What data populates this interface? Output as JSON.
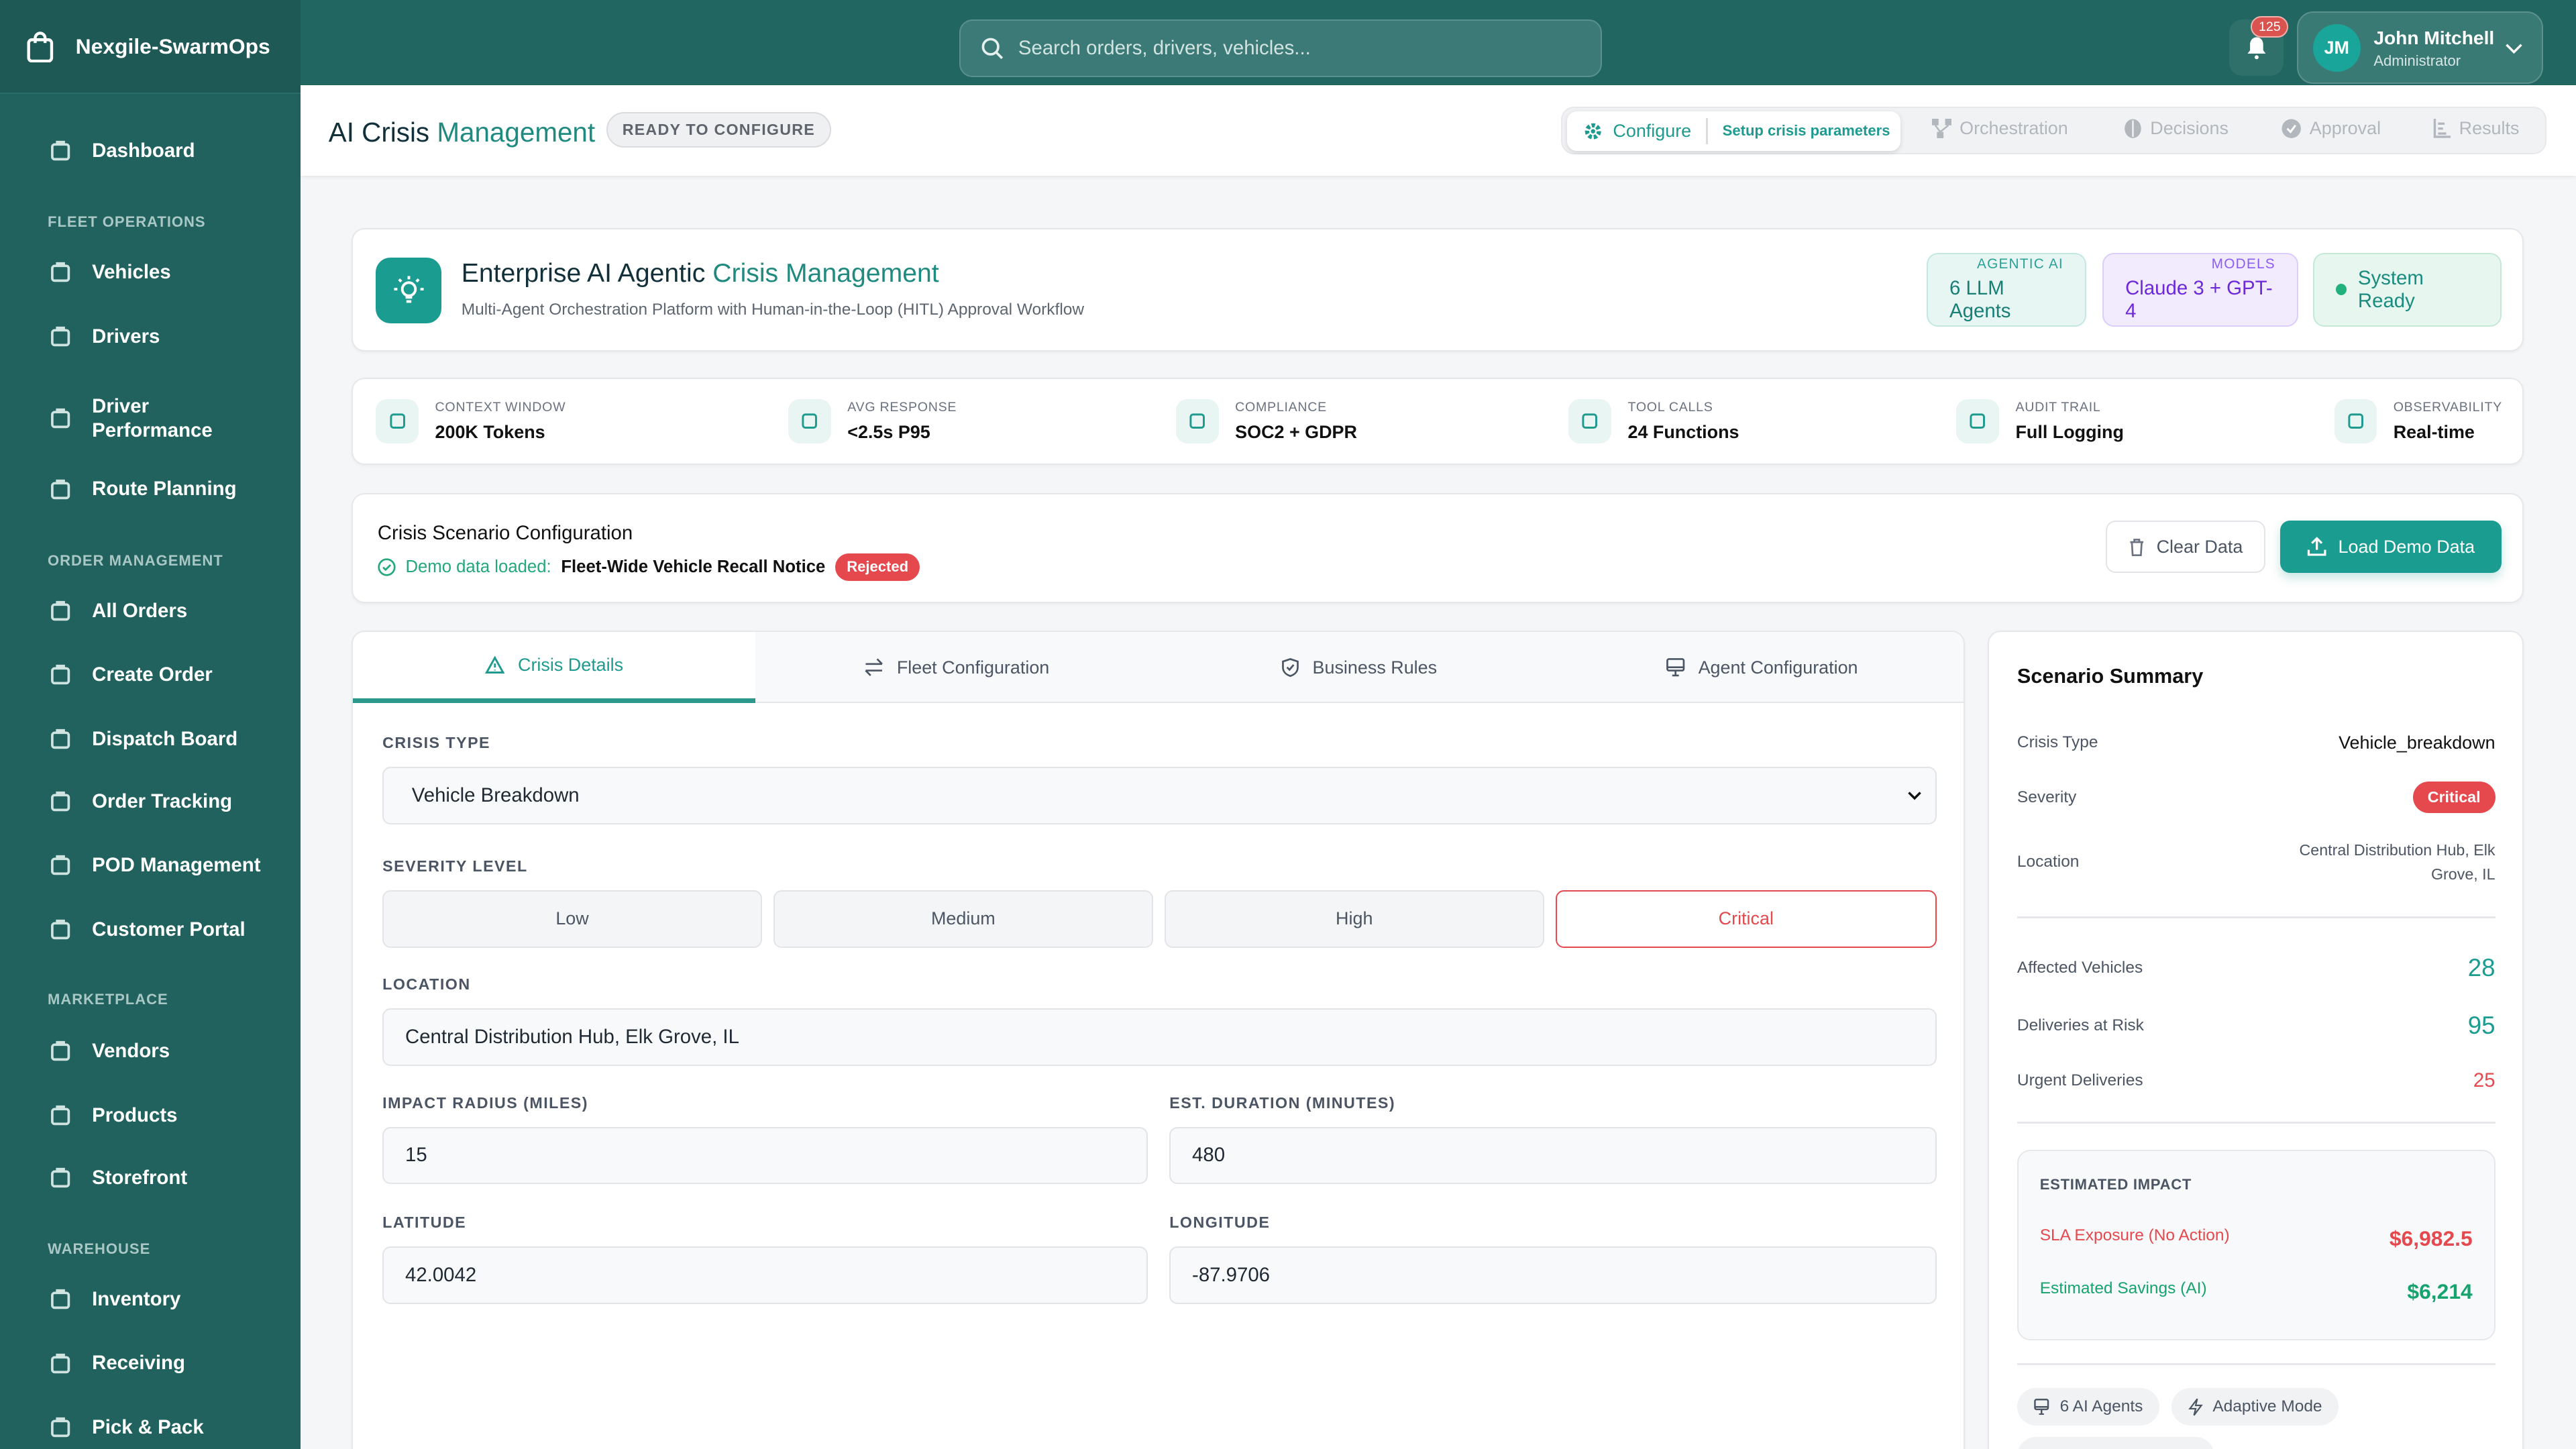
{
  "app": {
    "brand": "Nexgile-SwarmOps"
  },
  "sidebar": {
    "dashboard": "Dashboard",
    "sections": [
      {
        "title": "FLEET OPERATIONS",
        "items": [
          "Vehicles",
          "Drivers",
          "Driver Performance",
          "Route Planning"
        ]
      },
      {
        "title": "ORDER MANAGEMENT",
        "items": [
          "All Orders",
          "Create Order",
          "Dispatch Board",
          "Order Tracking",
          "POD Management",
          "Customer Portal"
        ]
      },
      {
        "title": "MARKETPLACE",
        "items": [
          "Vendors",
          "Products",
          "Storefront"
        ]
      },
      {
        "title": "WAREHOUSE",
        "items": [
          "Inventory",
          "Receiving",
          "Pick & Pack"
        ]
      }
    ]
  },
  "topbar": {
    "search_placeholder": "Search orders, drivers, vehicles...",
    "notifications": "125",
    "user": {
      "initials": "JM",
      "name": "John Mitchell",
      "role": "Administrator"
    }
  },
  "page": {
    "title_a": "AI Crisis ",
    "title_b": "Management",
    "status": "READY TO CONFIGURE"
  },
  "stepper": {
    "active": {
      "label": "Configure",
      "sub": "Setup crisis parameters"
    },
    "steps": [
      "Orchestration",
      "Decisions",
      "Approval",
      "Results"
    ]
  },
  "hero": {
    "title_a": "Enterprise AI Agentic ",
    "title_b": "Crisis Management",
    "subtitle": "Multi-Agent Orchestration Platform with Human-in-the-Loop (HITL) Approval Workflow",
    "pills": [
      {
        "k": "AGENTIC AI",
        "v": "6 LLM Agents"
      },
      {
        "k": "MODELS",
        "v": "Claude 3 + GPT-4"
      }
    ],
    "status": "System Ready"
  },
  "metrics": [
    {
      "k": "CONTEXT WINDOW",
      "v": "200K Tokens",
      "icon": "cpu-icon"
    },
    {
      "k": "AVG RESPONSE",
      "v": "<2.5s P95",
      "icon": "lightning-icon"
    },
    {
      "k": "COMPLIANCE",
      "v": "SOC2 + GDPR",
      "icon": "shield-check-icon"
    },
    {
      "k": "TOOL CALLS",
      "v": "24 Functions",
      "icon": "terminal-icon"
    },
    {
      "k": "AUDIT TRAIL",
      "v": "Full Logging",
      "icon": "clock-icon"
    },
    {
      "k": "OBSERVABILITY",
      "v": "Real-time",
      "icon": "bar-chart-icon"
    }
  ],
  "scenario": {
    "title": "Crisis Scenario Configuration",
    "loaded_label": "Demo data loaded:",
    "loaded_name": "Fleet-Wide Vehicle Recall Notice",
    "loaded_status": "Rejected",
    "clear": "Clear Data",
    "load": "Load Demo Data"
  },
  "tabs": [
    "Crisis Details",
    "Fleet Configuration",
    "Business Rules",
    "Agent Configuration"
  ],
  "form": {
    "crisis_type_label": "CRISIS TYPE",
    "crisis_type": "Vehicle Breakdown",
    "severity_label": "SEVERITY LEVEL",
    "severities": [
      "Low",
      "Medium",
      "High",
      "Critical"
    ],
    "severity_selected": "Critical",
    "location_label": "LOCATION",
    "location": "Central Distribution Hub, Elk Grove, IL",
    "radius_label": "IMPACT RADIUS (MILES)",
    "radius": "15",
    "duration_label": "EST. DURATION (MINUTES)",
    "duration": "480",
    "lat_label": "LATITUDE",
    "lat": "42.0042",
    "lon_label": "LONGITUDE",
    "lon": "-87.9706"
  },
  "summary": {
    "title": "Scenario Summary",
    "crisis_type_k": "Crisis Type",
    "crisis_type_v": "Vehicle_breakdown",
    "severity_k": "Severity",
    "severity_v": "Critical",
    "location_k": "Location",
    "location_v": "Central Distribution Hub, Elk Grove, IL",
    "affected_k": "Affected Vehicles",
    "affected_v": "28",
    "deliveries_k": "Deliveries at Risk",
    "deliveries_v": "95",
    "urgent_k": "Urgent Deliveries",
    "urgent_v": "25",
    "impact_title": "ESTIMATED IMPACT",
    "sla_k": "SLA Exposure (No Action)",
    "sla_v": "$6,982.5",
    "savings_k": "Estimated Savings (AI)",
    "savings_v": "$6,214",
    "chips": [
      "6 AI Agents",
      "Adaptive Mode"
    ]
  },
  "colors": {
    "primary": "#1a9c91",
    "sidebar": "#21625e",
    "danger": "#e5484d",
    "success": "#16a36e",
    "purple": "#7c3aed"
  }
}
